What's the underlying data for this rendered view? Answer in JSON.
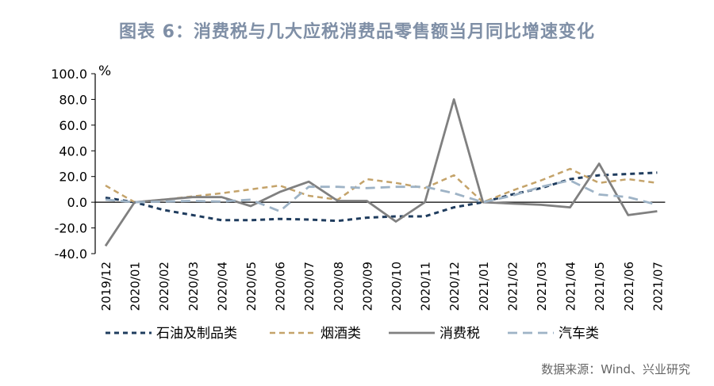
{
  "title": "图表 6：消费税与几大应税消费品零售额当月同比增速变化",
  "source": "数据来源：Wind、兴业研究",
  "chart_data": {
    "type": "line",
    "title": "图表 6：消费税与几大应税消费品零售额当月同比增速变化",
    "ylabel": "%",
    "xlabel": "",
    "ylim": [
      -40,
      100
    ],
    "yticks": [
      "-40.0",
      "-20.0",
      "0.0",
      "20.0",
      "40.0",
      "60.0",
      "80.0",
      "100.0"
    ],
    "categories": [
      "2019/12",
      "2020/01",
      "2020/02",
      "2020/03",
      "2020/04",
      "2020/05",
      "2020/06",
      "2020/07",
      "2020/08",
      "2020/09",
      "2020/10",
      "2020/11",
      "2020/12",
      "2021/01",
      "2021/02",
      "2021/03",
      "2021/04",
      "2021/05",
      "2021/06",
      "2021/07"
    ],
    "legend_position": "bottom",
    "grid": false,
    "series": [
      {
        "name": "石油及制品类",
        "color": "#1f3c5e",
        "dash": "6,5",
        "width": 3,
        "values": [
          3.5,
          0,
          -6,
          -10,
          -14,
          -14,
          -13,
          -13.5,
          -14.5,
          -12,
          -11,
          -11,
          -4,
          0,
          6,
          11,
          18,
          21,
          22,
          23
        ]
      },
      {
        "name": "烟酒类",
        "color": "#c4a36a",
        "dash": "7,5",
        "width": 2.5,
        "values": [
          13,
          0,
          2,
          4.5,
          7,
          10,
          13,
          5,
          2,
          18,
          15,
          11,
          21,
          0,
          9,
          17,
          26,
          15,
          18,
          15
        ]
      },
      {
        "name": "消费税",
        "color": "#808080",
        "dash": "",
        "width": 2.8,
        "values": [
          -34,
          0,
          2,
          4,
          4,
          -3,
          8,
          16,
          1,
          1,
          -15,
          0,
          80,
          0,
          -1,
          -2,
          -4,
          30,
          -10,
          -7
        ]
      },
      {
        "name": "汽车类",
        "color": "#9eb3c6",
        "dash": "12,7",
        "width": 2.8,
        "values": [
          2,
          0,
          0.5,
          1,
          0.5,
          2,
          -7,
          12,
          12,
          11,
          12,
          12,
          7,
          0,
          5,
          12,
          17,
          6,
          4,
          -2
        ]
      }
    ]
  }
}
